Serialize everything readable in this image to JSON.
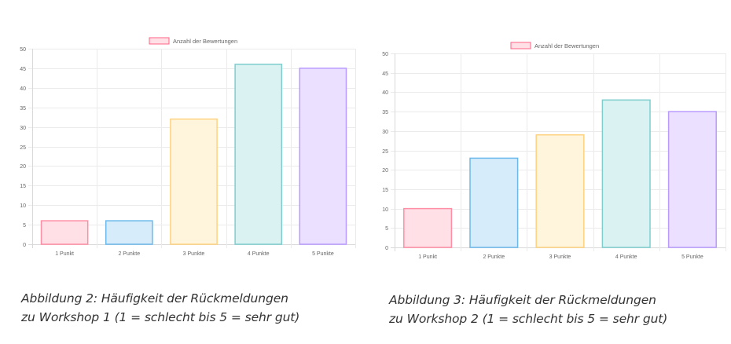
{
  "captions": [
    {
      "line1": "Abbildung 2: Häufigkeit der Rückmeldungen",
      "line2": "zu Workshop 1 (1 = schlecht bis 5 = sehr gut)"
    },
    {
      "line1": "Abbildung 3: Häufigkeit der Rückmeldungen",
      "line2": "zu Workshop 2 (1 = schlecht bis 5 = sehr gut)"
    }
  ],
  "chart_data": [
    {
      "type": "bar",
      "title": "",
      "xlabel": "",
      "ylabel": "",
      "categories": [
        "1 Punkt",
        "2 Punkte",
        "3 Punkte",
        "4 Punkte",
        "5 Punkte"
      ],
      "series": [
        {
          "name": "Anzahl der Bewertungen",
          "values": [
            6,
            6,
            32,
            46,
            45
          ]
        }
      ],
      "ylim": [
        0,
        50
      ],
      "yticks": [
        0,
        5,
        10,
        15,
        20,
        25,
        30,
        35,
        40,
        45,
        50
      ],
      "grid": true,
      "legend_position": "top",
      "bar_fills": [
        "#ffe0e6",
        "#d7ecfb",
        "#fff5dd",
        "#dbf2f2",
        "#ebe0ff"
      ],
      "bar_strokes": [
        "#ff8ea5",
        "#6cb8ea",
        "#ffd27f",
        "#7fcece",
        "#b99bff"
      ],
      "legend_fill": "#ffe0e6",
      "legend_stroke": "#ff6384"
    },
    {
      "type": "bar",
      "title": "",
      "xlabel": "",
      "ylabel": "",
      "categories": [
        "1 Punkt",
        "2 Punkte",
        "3 Punkte",
        "4 Punkte",
        "5 Punkte"
      ],
      "series": [
        {
          "name": "Anzahl der Bewertungen",
          "values": [
            10,
            23,
            29,
            38,
            35
          ]
        }
      ],
      "ylim": [
        0,
        50
      ],
      "yticks": [
        0,
        5,
        10,
        15,
        20,
        25,
        30,
        35,
        40,
        45,
        50
      ],
      "grid": true,
      "legend_position": "top",
      "bar_fills": [
        "#ffe0e6",
        "#d7ecfb",
        "#fff5dd",
        "#dbf2f2",
        "#ebe0ff"
      ],
      "bar_strokes": [
        "#ff8ea5",
        "#6cb8ea",
        "#ffd27f",
        "#7fcece",
        "#b99bff"
      ],
      "legend_fill": "#ffe0e6",
      "legend_stroke": "#ff6384"
    }
  ]
}
